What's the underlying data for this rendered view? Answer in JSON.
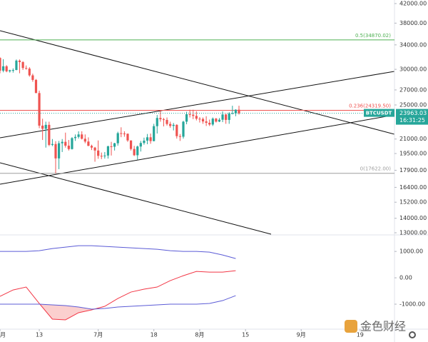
{
  "chart_data": [
    {
      "type": "candlestick",
      "symbol": "BTCUSDT",
      "countdown": "16:31:25",
      "last_price": {
        "value": 23963.03,
        "label": "23963.03"
      },
      "xlim": [
        0,
        120.5
      ],
      "xticks": [
        {
          "value": 0,
          "label": "月"
        },
        {
          "value": 12,
          "label": "13"
        },
        {
          "value": 30,
          "label": "7月"
        },
        {
          "value": 47,
          "label": "18"
        },
        {
          "value": 61,
          "label": "8月"
        },
        {
          "value": 75,
          "label": "15"
        },
        {
          "value": 92,
          "label": "9月"
        },
        {
          "value": 110,
          "label": "19"
        }
      ],
      "ylim": [
        13000,
        42000
      ],
      "log_scale": true,
      "yticks": [
        {
          "value": 42000,
          "label": "42000.00"
        },
        {
          "value": 38000,
          "label": "38000.00"
        },
        {
          "value": 34000,
          "label": "34000.00"
        },
        {
          "value": 30000,
          "label": "30000.00"
        },
        {
          "value": 27000,
          "label": "27000.00"
        },
        {
          "value": 25000,
          "label": "25000.00"
        },
        {
          "value": 21000,
          "label": "21000.00"
        },
        {
          "value": 19500,
          "label": "19500.00"
        },
        {
          "value": 17900,
          "label": "17900.00"
        },
        {
          "value": 16400,
          "label": "16400.00"
        },
        {
          "value": 15200,
          "label": "15200.00"
        },
        {
          "value": 14000,
          "label": "14000.00"
        },
        {
          "value": 13000,
          "label": "13000.00"
        }
      ],
      "up_color": "#26a69a",
      "down_color": "#ef5350",
      "open": [
        31800,
        29800,
        30470,
        29700,
        29860,
        29900,
        31370,
        31130,
        30200,
        30110,
        29090,
        28420,
        26570,
        22490,
        22130,
        22580,
        20380,
        20470,
        19020,
        20550,
        20700,
        20300,
        19950,
        21100,
        21230,
        21500,
        21030,
        20730,
        20280,
        20100,
        19800,
        19270,
        19240,
        19300,
        20230,
        20190,
        20550,
        21640,
        21600,
        21580,
        20850,
        19960,
        19330,
        20210,
        20580,
        20830,
        21190,
        20780,
        22430,
        23390,
        23230,
        23160,
        22680,
        22460,
        22580,
        21310,
        21250,
        22950,
        23840,
        23780,
        23640,
        23300,
        23270,
        22980,
        22820,
        22620,
        23310,
        22960,
        23180,
        23810,
        23160,
        23950,
        23950,
        24400
      ],
      "high": [
        31900,
        31600,
        30650,
        29940,
        30150,
        31550,
        31550,
        31280,
        30600,
        30330,
        29340,
        28550,
        26900,
        23300,
        22950,
        22950,
        21000,
        20770,
        20800,
        21000,
        21700,
        20900,
        21200,
        21500,
        21850,
        21850,
        21500,
        21180,
        20400,
        20170,
        20850,
        19600,
        19650,
        20300,
        20700,
        20600,
        21800,
        22300,
        21850,
        21600,
        20850,
        20280,
        20300,
        20800,
        21150,
        21550,
        21600,
        22700,
        23750,
        24250,
        23400,
        23450,
        22950,
        22800,
        22650,
        21550,
        23050,
        24150,
        24400,
        24400,
        24200,
        23500,
        23450,
        23600,
        23200,
        23450,
        23400,
        23380,
        24200,
        23900,
        24100,
        24900,
        24450,
        24900
      ],
      "low": [
        29400,
        29550,
        29550,
        29500,
        29500,
        29850,
        29400,
        29900,
        29950,
        28900,
        28150,
        26560,
        22200,
        20900,
        20100,
        20250,
        20250,
        17622,
        18000,
        19650,
        20100,
        19800,
        19900,
        20800,
        21050,
        20950,
        20550,
        20250,
        19850,
        18700,
        18980,
        18950,
        19000,
        19000,
        19300,
        19800,
        20300,
        21200,
        21250,
        20700,
        19800,
        19250,
        18900,
        19700,
        20400,
        20450,
        20500,
        20750,
        21600,
        22950,
        22400,
        22500,
        22250,
        21950,
        21050,
        20800,
        21050,
        22650,
        23450,
        23250,
        23100,
        22850,
        22700,
        22450,
        22450,
        22450,
        22850,
        22900,
        22900,
        22700,
        22700,
        23850,
        23600,
        23800
      ],
      "close": [
        29800,
        30470,
        29700,
        29860,
        29900,
        31370,
        31130,
        30200,
        30110,
        29090,
        28420,
        26570,
        22490,
        22130,
        22580,
        20380,
        20470,
        19020,
        20550,
        20700,
        20300,
        19950,
        21100,
        21230,
        21500,
        21030,
        20730,
        20280,
        20100,
        19800,
        19270,
        19240,
        19300,
        20230,
        20190,
        20550,
        21640,
        21600,
        21580,
        20850,
        19960,
        19330,
        20210,
        20580,
        20830,
        21190,
        20780,
        22430,
        23390,
        23230,
        23160,
        22680,
        22460,
        22580,
        21310,
        21250,
        22950,
        23840,
        23780,
        23640,
        23300,
        23270,
        22980,
        22820,
        22620,
        23310,
        22960,
        23180,
        23810,
        23160,
        23950,
        23950,
        24400,
        23963
      ],
      "fib_levels": [
        {
          "value": 34870.02,
          "label": "0.5(34870.02)",
          "color": "#4caf50"
        },
        {
          "value": 24319.5,
          "label": "0.236(24319.50)",
          "color": "#ef5350"
        },
        {
          "value": 17622.0,
          "label": "0(17622.00)",
          "color": "#9e9e9e"
        }
      ]
    },
    {
      "type": "line",
      "xlim": [
        0,
        120.5
      ],
      "ylim": [
        -1920,
        1600
      ],
      "yticks": [
        {
          "value": 1000,
          "label": "1000.00"
        },
        {
          "value": 0,
          "label": "0.00"
        },
        {
          "value": -1000,
          "label": "-1000.00"
        }
      ],
      "x": [
        0,
        4,
        8,
        12,
        16,
        20,
        24,
        28,
        32,
        36,
        40,
        44,
        48,
        52,
        56,
        60,
        64,
        68,
        72
      ],
      "fill_color": "rgba(239,83,80,0.28)",
      "series": [
        {
          "color": "#5b5bd6",
          "values": [
            1000,
            1000,
            1000,
            1027,
            1108,
            1162,
            1216,
            1216,
            1189,
            1162,
            1135,
            1108,
            1081,
            1027,
            1000,
            1000,
            973,
            865,
            730
          ]
        },
        {
          "color": "#f23645",
          "values": [
            -703,
            -460,
            -351,
            -973,
            -1568,
            -1595,
            -1324,
            -1216,
            -1081,
            -784,
            -541,
            -432,
            -351,
            -108,
            81,
            243,
            216,
            216,
            270
          ]
        },
        {
          "color": "#5b5bd6",
          "values": [
            -1000,
            -1000,
            -1000,
            -1000,
            -1027,
            -1054,
            -1108,
            -1189,
            -1162,
            -1108,
            -1081,
            -1054,
            -1027,
            -1000,
            -1000,
            -1000,
            -973,
            -865,
            -676
          ]
        }
      ]
    }
  ],
  "watermark": "金色财经"
}
